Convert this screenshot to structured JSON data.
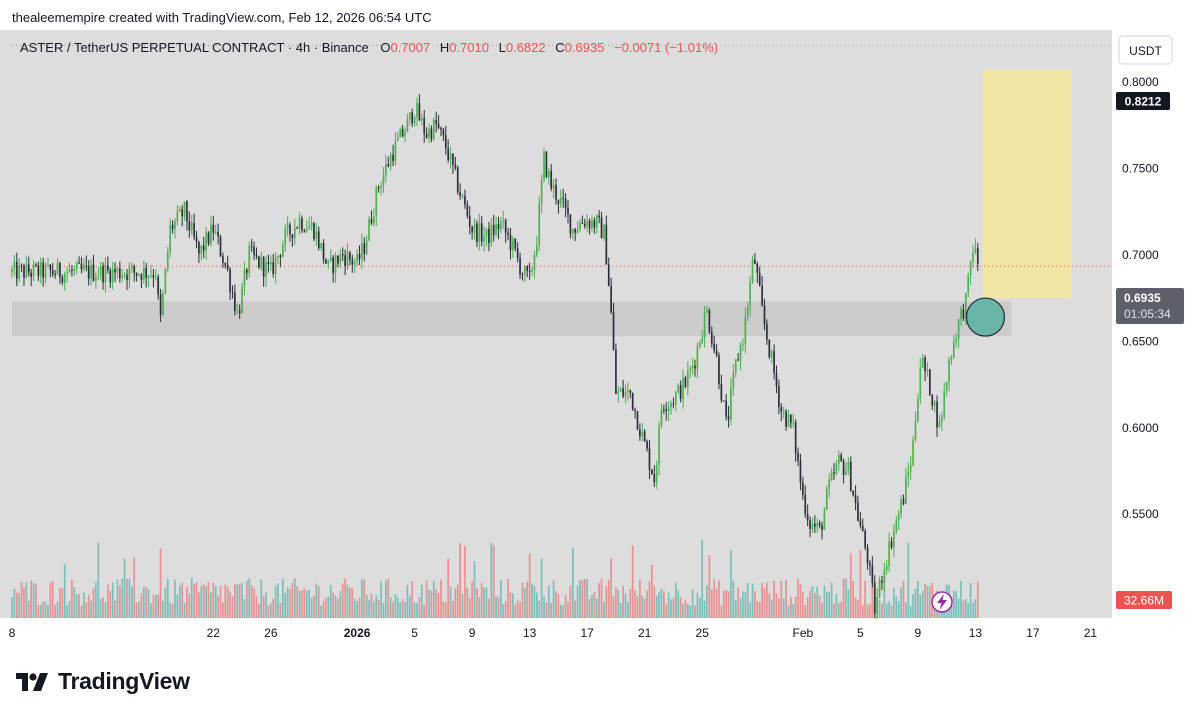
{
  "credit": "thealeemempire created with TradingView.com, Feb 12, 2026 06:54 UTC",
  "header": {
    "symbol": "ASTER / TetherUS PERPETUAL CONTRACT · 4h · Binance",
    "open_label": "O",
    "open": "0.7007",
    "high_label": "H",
    "high": "0.7010",
    "low_label": "L",
    "low": "0.6822",
    "close_label": "C",
    "close": "0.6935",
    "change": "−0.0071 (−1.01%)",
    "currency": "USDT"
  },
  "price_tags": {
    "level": "0.8212",
    "last": "0.6935",
    "countdown": "01:05:34",
    "volume": "32.66M"
  },
  "brand": "TradingView",
  "colors": {
    "up": "#26a69a",
    "upBody": "#4caf50",
    "down": "#2a2e39",
    "volUp": "#26a69a",
    "volDown": "#ef5350",
    "background": "#dddddd",
    "zone": "#cccccc",
    "target": "#f5e89a",
    "circle": "#5fb3a3",
    "accent": "#ef5350",
    "bolt": "#9c27b0"
  },
  "icons": {
    "lightning": "lightning-icon",
    "logo": "tradingview-logo-icon"
  },
  "chart_data": {
    "type": "candlestick",
    "timeframe": "4h",
    "ylim": [
      0.49,
      0.83
    ],
    "yticks": [
      "0.8000",
      "0.7500",
      "0.7000",
      "0.6500",
      "0.6000",
      "0.5500"
    ],
    "xticks": [
      {
        "label": "8",
        "day": 8,
        "bold": false
      },
      {
        "label": "22",
        "day": 22,
        "bold": false
      },
      {
        "label": "26",
        "day": 26,
        "bold": false
      },
      {
        "label": "2026",
        "day": 32,
        "bold": true
      },
      {
        "label": "5",
        "day": 36,
        "bold": false
      },
      {
        "label": "9",
        "day": 40,
        "bold": false
      },
      {
        "label": "13",
        "day": 44,
        "bold": false
      },
      {
        "label": "17",
        "day": 48,
        "bold": false
      },
      {
        "label": "21",
        "day": 52,
        "bold": false
      },
      {
        "label": "25",
        "day": 56,
        "bold": false
      },
      {
        "label": "Feb",
        "day": 63,
        "bold": false
      },
      {
        "label": "5",
        "day": 67,
        "bold": false
      },
      {
        "label": "9",
        "day": 71,
        "bold": false
      },
      {
        "label": "13",
        "day": 75,
        "bold": false
      },
      {
        "label": "17",
        "day": 79,
        "bold": false
      },
      {
        "label": "21",
        "day": 83,
        "bold": false
      }
    ],
    "xrange_days": [
      8,
      84.5
    ],
    "keypoints": [
      [
        18.0,
        0.69
      ],
      [
        18.3,
        0.66
      ],
      [
        19.0,
        0.715
      ],
      [
        20.0,
        0.725
      ],
      [
        21.0,
        0.7
      ],
      [
        22.0,
        0.715
      ],
      [
        23.0,
        0.69
      ],
      [
        23.7,
        0.665
      ],
      [
        24.5,
        0.7
      ],
      [
        26.0,
        0.69
      ],
      [
        27.0,
        0.71
      ],
      [
        28.0,
        0.72
      ],
      [
        29.0,
        0.715
      ],
      [
        30.0,
        0.692
      ],
      [
        31.0,
        0.7
      ],
      [
        32.0,
        0.695
      ],
      [
        32.5,
        0.705
      ],
      [
        33.5,
        0.74
      ],
      [
        34.5,
        0.76
      ],
      [
        35.5,
        0.775
      ],
      [
        36.0,
        0.785
      ],
      [
        36.8,
        0.77
      ],
      [
        37.5,
        0.775
      ],
      [
        38.2,
        0.762
      ],
      [
        39.0,
        0.74
      ],
      [
        40.0,
        0.715
      ],
      [
        41.0,
        0.71
      ],
      [
        42.0,
        0.718
      ],
      [
        42.8,
        0.705
      ],
      [
        43.5,
        0.69
      ],
      [
        44.0,
        0.685
      ],
      [
        44.5,
        0.71
      ],
      [
        45.0,
        0.755
      ],
      [
        45.5,
        0.74
      ],
      [
        46.2,
        0.73
      ],
      [
        47.0,
        0.715
      ],
      [
        47.8,
        0.72
      ],
      [
        48.7,
        0.718
      ],
      [
        49.2,
        0.712
      ],
      [
        49.6,
        0.675
      ],
      [
        50.0,
        0.62
      ],
      [
        51.0,
        0.62
      ],
      [
        52.0,
        0.59
      ],
      [
        52.7,
        0.57
      ],
      [
        53.2,
        0.615
      ],
      [
        53.8,
        0.615
      ],
      [
        54.8,
        0.625
      ],
      [
        55.5,
        0.64
      ],
      [
        56.3,
        0.668
      ],
      [
        57.0,
        0.64
      ],
      [
        57.7,
        0.6
      ],
      [
        58.3,
        0.635
      ],
      [
        58.9,
        0.655
      ],
      [
        59.6,
        0.7
      ],
      [
        60.2,
        0.665
      ],
      [
        60.8,
        0.64
      ],
      [
        61.5,
        0.61
      ],
      [
        62.3,
        0.6
      ],
      [
        63.0,
        0.56
      ],
      [
        63.5,
        0.545
      ],
      [
        64.2,
        0.54
      ],
      [
        64.8,
        0.565
      ],
      [
        65.5,
        0.58
      ],
      [
        66.2,
        0.575
      ],
      [
        66.8,
        0.55
      ],
      [
        67.5,
        0.525
      ],
      [
        68.0,
        0.495
      ],
      [
        68.5,
        0.515
      ],
      [
        69.3,
        0.54
      ],
      [
        70.0,
        0.56
      ],
      [
        70.6,
        0.585
      ],
      [
        71.2,
        0.64
      ],
      [
        71.8,
        0.625
      ],
      [
        72.5,
        0.6
      ],
      [
        73.2,
        0.64
      ],
      [
        73.8,
        0.66
      ],
      [
        74.4,
        0.675
      ],
      [
        74.8,
        0.705
      ],
      [
        75.2,
        0.695
      ]
    ],
    "zones": {
      "support_band": [
        0.653,
        0.673
      ],
      "support_band_days": [
        8,
        77.5
      ],
      "target_box": [
        0.675,
        0.807
      ],
      "target_box_days": [
        75.5,
        81.7
      ],
      "level_line": 0.8212,
      "last_price_line": 0.6935,
      "circle_center": [
        75.7,
        0.664
      ]
    }
  }
}
